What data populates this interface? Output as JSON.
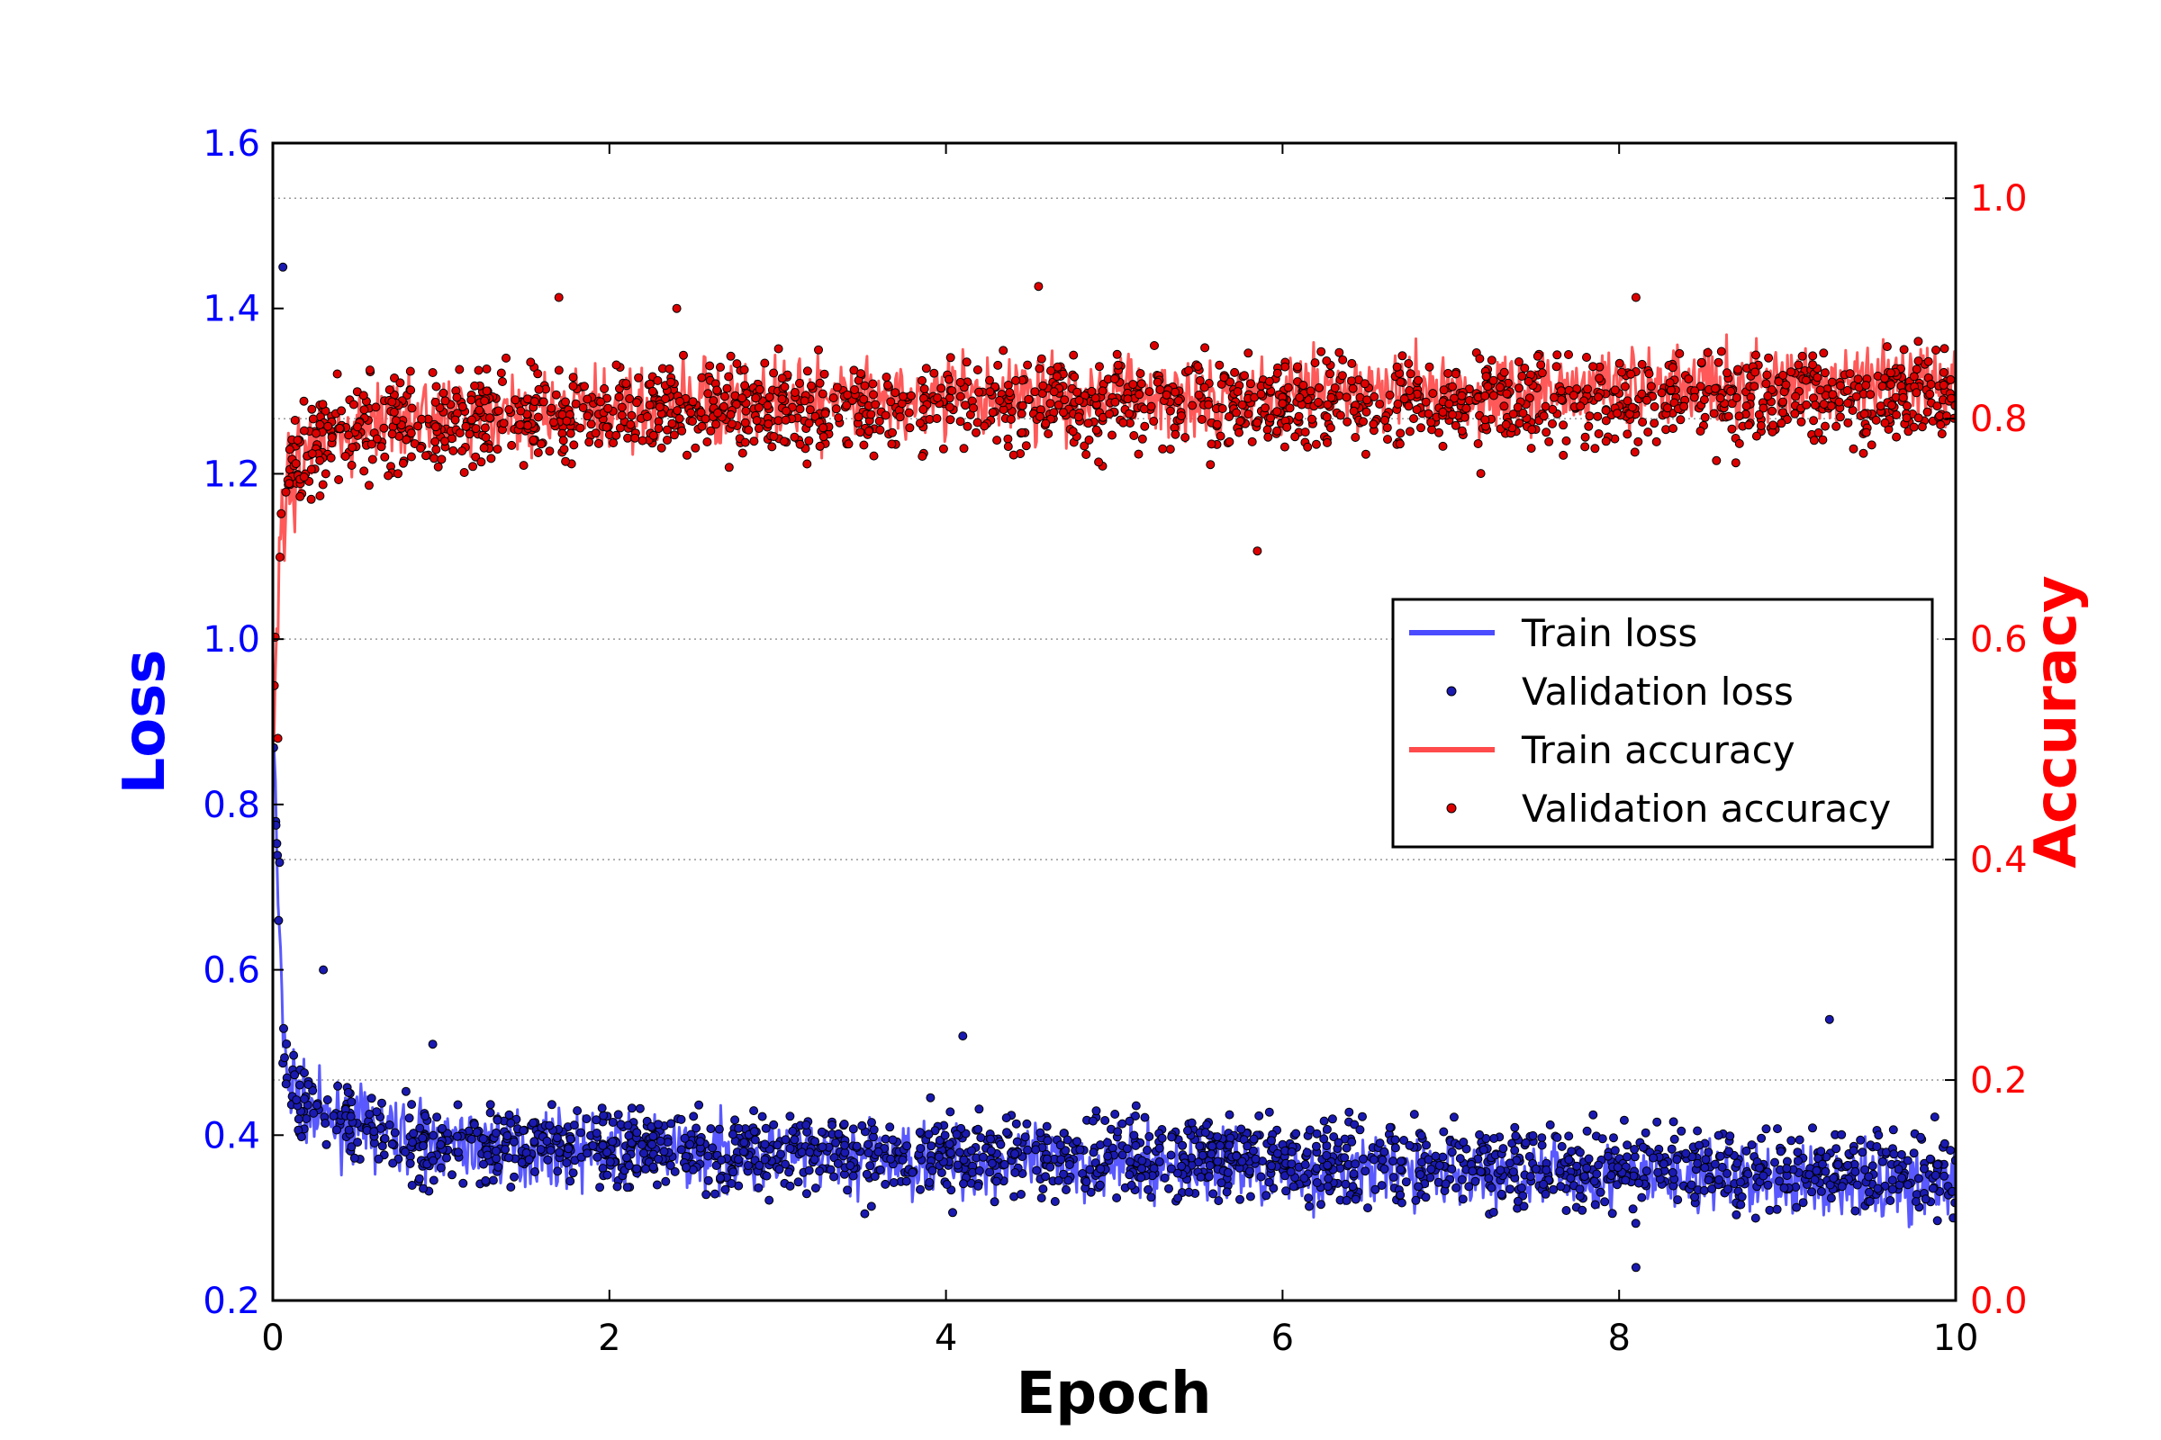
{
  "chart_data": {
    "type": "line",
    "title": "",
    "xlabel": "Epoch",
    "ylabel_left": "Loss",
    "ylabel_right": "Accuracy",
    "xlim": [
      0,
      10
    ],
    "ylim_left": [
      0.2,
      1.6
    ],
    "ylim_right": [
      0.0,
      1.05
    ],
    "x_ticks": [
      "0",
      "2",
      "4",
      "6",
      "8",
      "10"
    ],
    "y_left_ticks": [
      "0.2",
      "0.4",
      "0.6",
      "0.8",
      "1.0",
      "1.2",
      "1.4",
      "1.6"
    ],
    "y_right_ticks": [
      "0.0",
      "0.2",
      "0.4",
      "0.6",
      "0.8",
      "1.0"
    ],
    "grid": "horizontal dotted at right-axis ticks",
    "legend_position": "center-right",
    "colors": {
      "loss_axis": "#0000ff",
      "accuracy_axis": "#ff0000",
      "train_loss": "#4b4bff",
      "val_loss_marker": "#1a1ab0",
      "train_accuracy": "#ff4b4b",
      "val_accuracy_marker": "#dd0000"
    },
    "series": [
      {
        "name": "Train loss",
        "axis": "left",
        "kind": "line",
        "x": [
          0.0,
          0.05,
          0.1,
          0.2,
          0.3,
          0.5,
          0.75,
          1.0,
          1.5,
          2.0,
          3.0,
          4.0,
          5.0,
          6.0,
          7.0,
          8.0,
          9.0,
          10.0
        ],
        "values": [
          0.9,
          0.55,
          0.46,
          0.43,
          0.42,
          0.41,
          0.4,
          0.39,
          0.385,
          0.38,
          0.375,
          0.37,
          0.365,
          0.36,
          0.355,
          0.35,
          0.345,
          0.34
        ]
      },
      {
        "name": "Validation loss",
        "axis": "left",
        "kind": "scatter",
        "x": [
          0.0,
          0.05,
          0.1,
          0.2,
          0.3,
          0.5,
          0.75,
          1.0,
          1.5,
          2.0,
          3.0,
          4.0,
          5.0,
          6.0,
          7.0,
          8.0,
          9.0,
          10.0
        ],
        "values": [
          0.9,
          0.52,
          0.46,
          0.43,
          0.42,
          0.41,
          0.4,
          0.39,
          0.39,
          0.385,
          0.38,
          0.375,
          0.37,
          0.37,
          0.365,
          0.36,
          0.36,
          0.36
        ],
        "outliers": [
          [
            0.06,
            1.45
          ],
          [
            0.04,
            0.73
          ],
          [
            0.3,
            0.6
          ],
          [
            0.95,
            0.51
          ],
          [
            4.1,
            0.52
          ],
          [
            9.25,
            0.54
          ],
          [
            8.1,
            0.24
          ]
        ]
      },
      {
        "name": "Train accuracy",
        "axis": "right",
        "kind": "line",
        "x": [
          0.0,
          0.05,
          0.1,
          0.2,
          0.3,
          0.5,
          0.75,
          1.0,
          1.5,
          2.0,
          3.0,
          4.0,
          5.0,
          6.0,
          7.0,
          8.0,
          9.0,
          10.0
        ],
        "values": [
          0.5,
          0.72,
          0.76,
          0.77,
          0.78,
          0.79,
          0.8,
          0.8,
          0.805,
          0.81,
          0.815,
          0.82,
          0.82,
          0.825,
          0.825,
          0.83,
          0.83,
          0.835
        ]
      },
      {
        "name": "Validation accuracy",
        "axis": "right",
        "kind": "scatter",
        "x": [
          0.0,
          0.05,
          0.1,
          0.2,
          0.3,
          0.5,
          0.75,
          1.0,
          1.5,
          2.0,
          3.0,
          4.0,
          5.0,
          6.0,
          7.0,
          8.0,
          9.0,
          10.0
        ],
        "values": [
          0.52,
          0.72,
          0.76,
          0.77,
          0.78,
          0.79,
          0.795,
          0.8,
          0.8,
          0.805,
          0.81,
          0.81,
          0.815,
          0.815,
          0.815,
          0.82,
          0.82,
          0.82
        ],
        "outliers": [
          [
            0.03,
            0.51
          ],
          [
            4.55,
            0.92
          ],
          [
            8.1,
            0.91
          ],
          [
            5.85,
            0.68
          ],
          [
            1.7,
            0.91
          ],
          [
            2.4,
            0.9
          ]
        ]
      }
    ],
    "legend": [
      {
        "label": "Train loss",
        "kind": "line",
        "color": "#4b4bff"
      },
      {
        "label": "Validation loss",
        "kind": "marker",
        "color": "#1a1ab0"
      },
      {
        "label": "Train accuracy",
        "kind": "line",
        "color": "#ff4b4b"
      },
      {
        "label": "Validation accuracy",
        "kind": "marker",
        "color": "#dd0000"
      }
    ]
  }
}
